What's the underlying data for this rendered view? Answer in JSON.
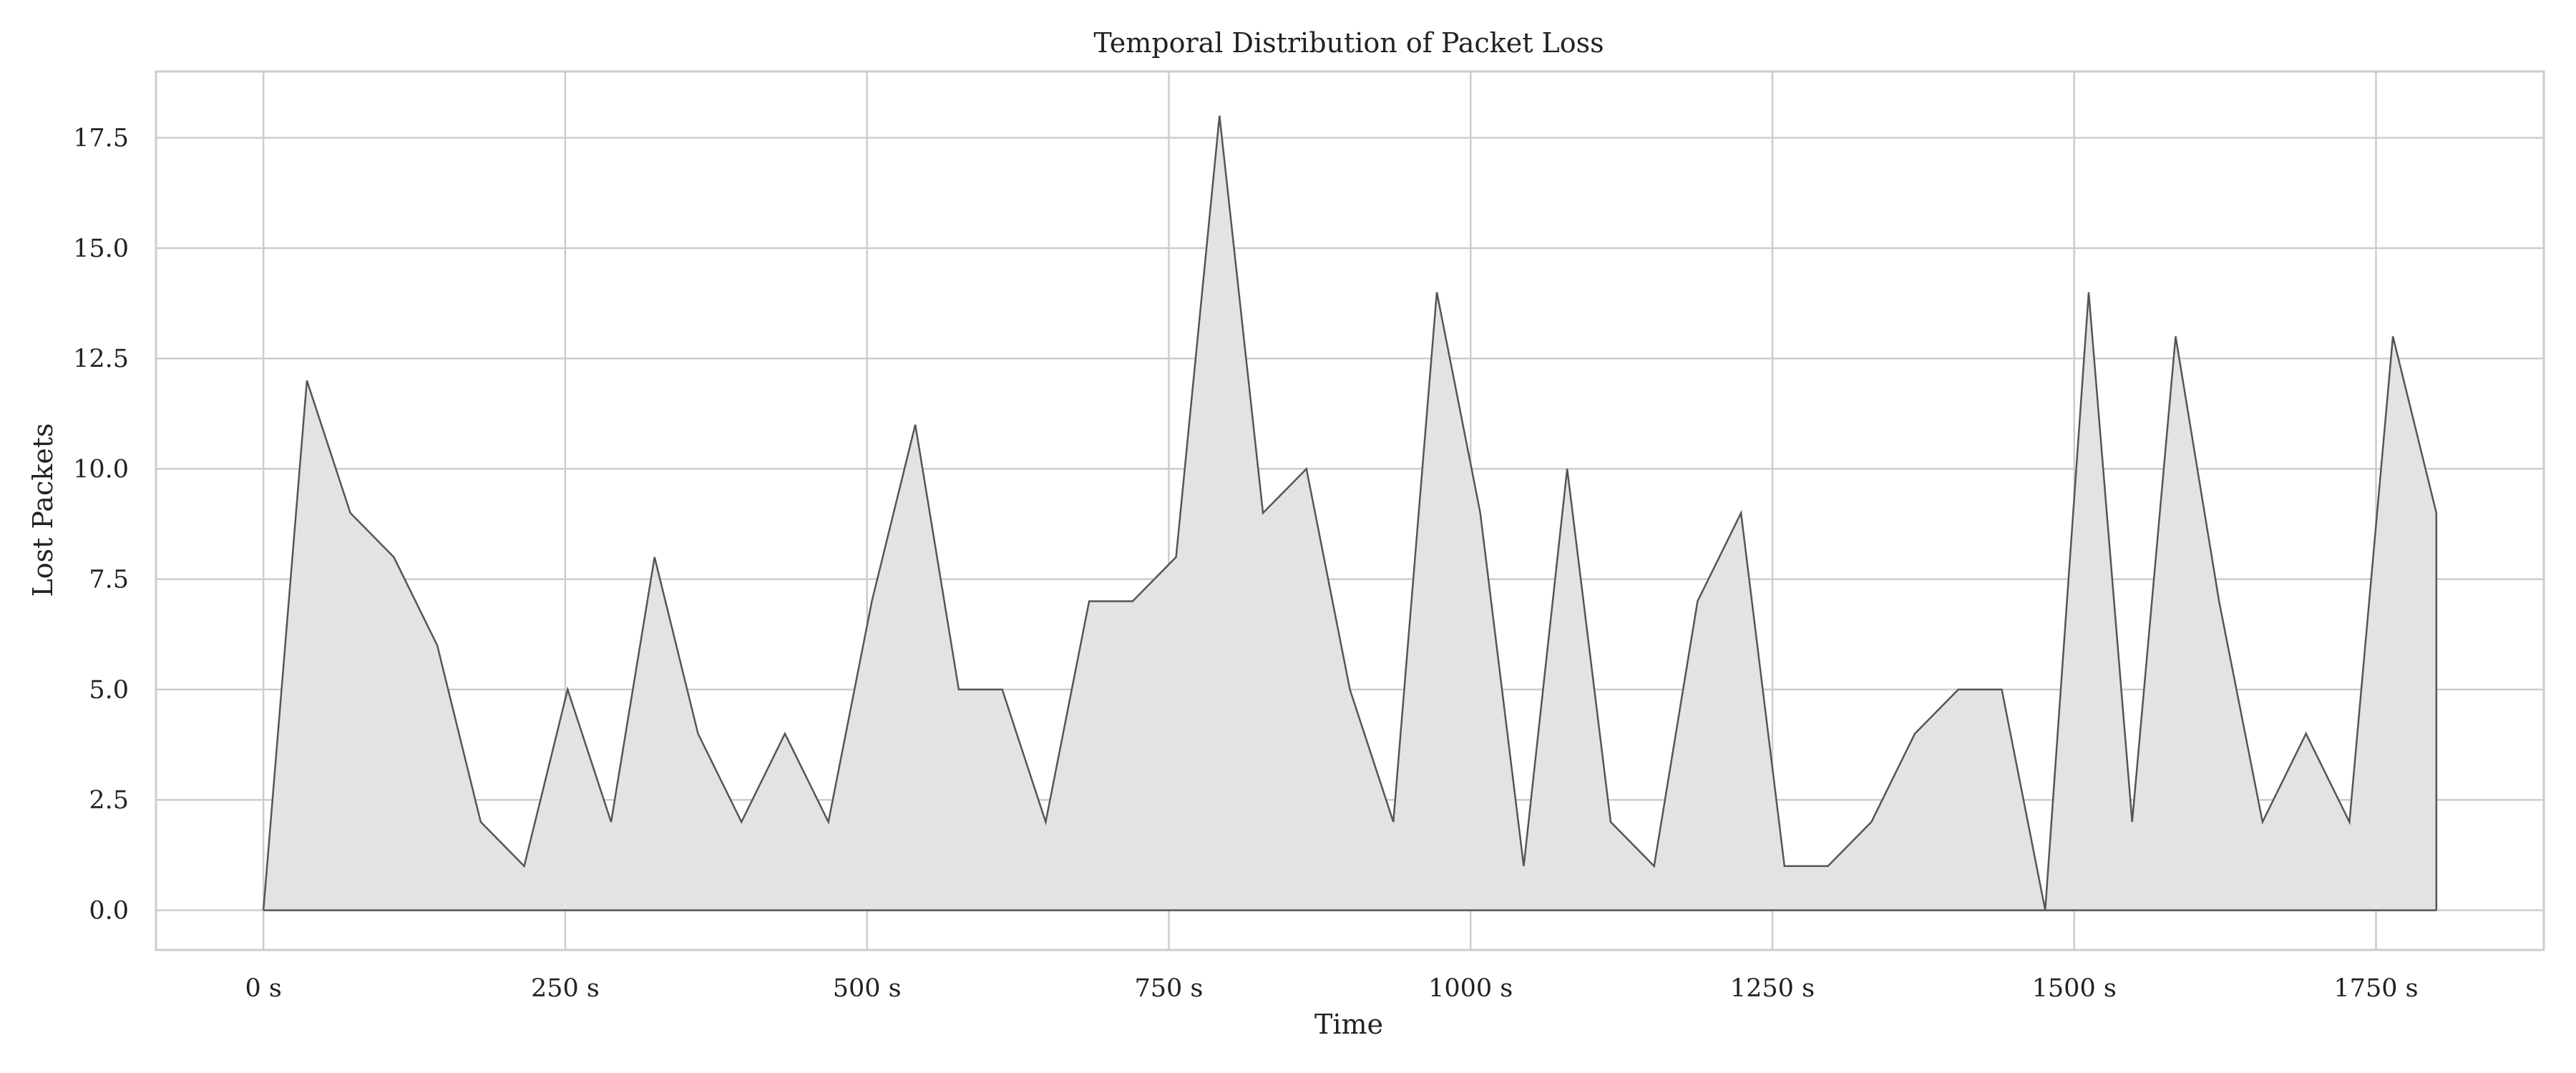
{
  "chart_data": {
    "type": "area",
    "title": "Temporal Distribution of Packet Loss",
    "xlabel": "Time",
    "ylabel": "Lost Packets",
    "xlim": [
      -89,
      1889
    ],
    "ylim": [
      -0.9,
      19.0
    ],
    "grid": true,
    "legend": "none",
    "x_ticks": [
      0,
      250,
      500,
      750,
      1000,
      1250,
      1500,
      1750
    ],
    "x_tick_labels": [
      "0 s",
      "250 s",
      "500 s",
      "750 s",
      "1000 s",
      "1250 s",
      "1500 s",
      "1750 s"
    ],
    "y_ticks": [
      0.0,
      2.5,
      5.0,
      7.5,
      10.0,
      12.5,
      15.0,
      17.5
    ],
    "y_tick_labels": [
      "0.0",
      "2.5",
      "5.0",
      "7.5",
      "10.0",
      "12.5",
      "15.0",
      "17.5"
    ],
    "series": [
      {
        "x": [
          0,
          36,
          72,
          108,
          144,
          180,
          216,
          252,
          288,
          324,
          360,
          396,
          432,
          468,
          504,
          540,
          576,
          612,
          648,
          684,
          720,
          756,
          792,
          828,
          864,
          900,
          936,
          972,
          1008,
          1044,
          1080,
          1116,
          1152,
          1188,
          1224,
          1260,
          1296,
          1332,
          1368,
          1404,
          1440,
          1476,
          1512,
          1548,
          1584,
          1620,
          1656,
          1692,
          1728,
          1764,
          1800
        ],
        "values": [
          0,
          12,
          9,
          8,
          6,
          2,
          1,
          5,
          2,
          8,
          4,
          2,
          4,
          2,
          7,
          11,
          5,
          5,
          2,
          7,
          7,
          8,
          18,
          9,
          10,
          5,
          2,
          14,
          9,
          1,
          10,
          2,
          1,
          7,
          9,
          1,
          1,
          2,
          4,
          5,
          5,
          0,
          14,
          2,
          13,
          7,
          2,
          4,
          2,
          13,
          9
        ]
      }
    ],
    "colors": {
      "fill": "#e3e3e3",
      "line": "#555555",
      "grid": "#cccccc",
      "frame": "#cccccc",
      "text": "#222222"
    }
  }
}
